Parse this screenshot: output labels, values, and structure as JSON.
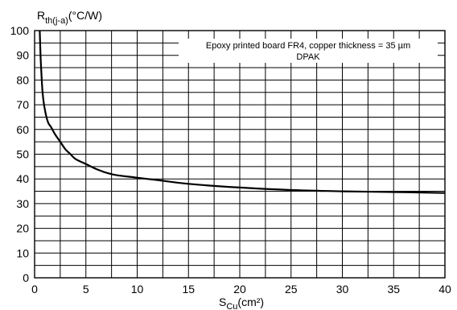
{
  "chart_data": {
    "type": "line",
    "ylabel_main": "R",
    "ylabel_sub": "th(j-a)",
    "ylabel_unit": "(°C/W)",
    "xlabel_main": "S",
    "xlabel_sub": "Cu",
    "xlabel_unit": "(cm²)",
    "annotation_line1": "Epoxy printed board FR4, copper thickness = 35 µm",
    "annotation_line2": "DPAK",
    "xlim": [
      0,
      40
    ],
    "ylim": [
      0,
      100
    ],
    "x_ticks": [
      0,
      5,
      10,
      15,
      20,
      25,
      30,
      35,
      40
    ],
    "y_ticks": [
      0,
      10,
      20,
      30,
      40,
      50,
      60,
      70,
      80,
      90,
      100
    ],
    "grid": true,
    "series": [
      {
        "x": [
          0.5,
          0.6,
          0.7,
          0.8,
          1,
          1.3,
          1.6,
          2,
          2.5,
          3,
          3.5,
          4,
          5,
          6,
          7,
          8,
          10,
          12,
          15,
          20,
          25,
          30,
          35,
          40
        ],
        "y": [
          100,
          88,
          80,
          74,
          68,
          63,
          61,
          58,
          55,
          52,
          50,
          48,
          46,
          44,
          42.5,
          41.5,
          40.5,
          39.5,
          38,
          36.5,
          35.5,
          35,
          34.7,
          34.3
        ]
      }
    ]
  }
}
